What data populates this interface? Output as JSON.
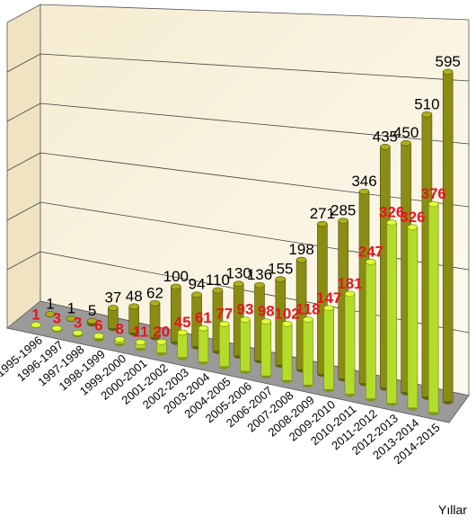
{
  "chart_data": {
    "type": "bar3d",
    "x_label": "Yıllar",
    "categories": [
      "1995-1996",
      "1996-1997",
      "1997-1998",
      "1998-1999",
      "1999-2000",
      "2000-2001",
      "2001-2002",
      "2002-2003",
      "2003-2004",
      "2004-2005",
      "2005-2006",
      "2006-2007",
      "2007-2008",
      "2008-2009",
      "2009-2010",
      "2010-2011",
      "2011-2012",
      "2012-2013",
      "2013-2014",
      "2014-2015"
    ],
    "series": [
      {
        "color": "#8a8c14",
        "label_color": "#000000",
        "values": [
          1,
          1,
          5,
          37,
          48,
          62,
          100,
          94,
          110,
          130,
          136,
          155,
          198,
          271,
          285,
          346,
          435,
          450,
          510,
          595
        ]
      },
      {
        "color": "#b4dc2a",
        "label_color": "#e8141e",
        "values": [
          1,
          3,
          3,
          6,
          8,
          11,
          20,
          45,
          61,
          77,
          93,
          98,
          102,
          118,
          147,
          181,
          247,
          326,
          326,
          376
        ]
      }
    ],
    "ylim": [
      0,
      600
    ]
  }
}
